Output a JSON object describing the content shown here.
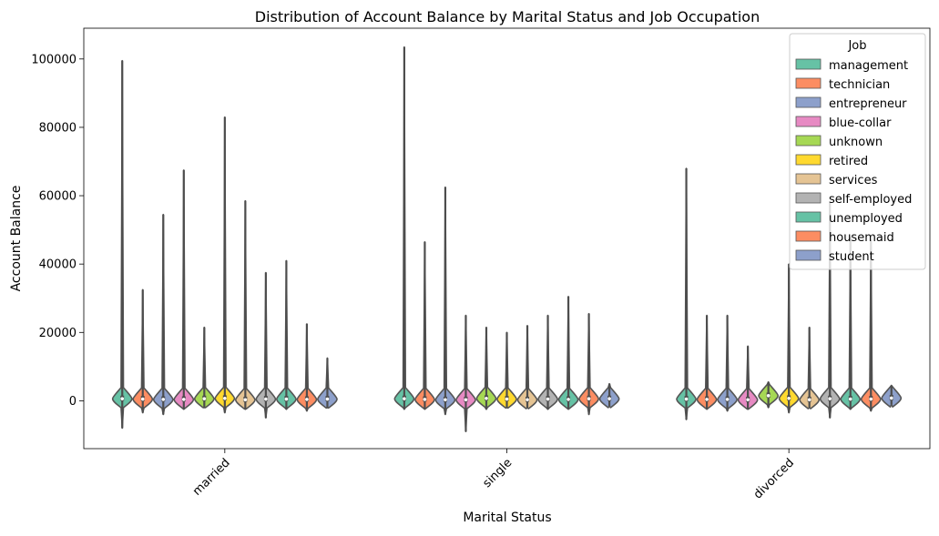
{
  "chart_data": {
    "type": "violin",
    "title": "Distribution of Account Balance by Marital Status and Job Occupation",
    "xlabel": "Marital Status",
    "ylabel": "Account Balance",
    "categories": [
      "married",
      "single",
      "divorced"
    ],
    "ylim": [
      -14000,
      109000
    ],
    "yticks": [
      0,
      20000,
      40000,
      60000,
      80000,
      100000
    ],
    "ytick_labels": [
      "0",
      "20000",
      "40000",
      "60000",
      "80000",
      "100000"
    ],
    "legend": {
      "title": "Job",
      "placement": "top-right"
    },
    "series": [
      {
        "name": "management",
        "color": "#66c2a5",
        "min": [
          -8000,
          -2500,
          -5500
        ],
        "max": [
          99500,
          103500,
          68000
        ],
        "median": [
          600,
          600,
          500
        ]
      },
      {
        "name": "technician",
        "color": "#fc8d62",
        "min": [
          -3500,
          -2500,
          -2500
        ],
        "max": [
          32500,
          46500,
          25000
        ],
        "median": [
          500,
          400,
          400
        ]
      },
      {
        "name": "entrepreneur",
        "color": "#8da0cb",
        "min": [
          -4000,
          -4000,
          -3000
        ],
        "max": [
          54500,
          62500,
          25000
        ],
        "median": [
          400,
          300,
          400
        ]
      },
      {
        "name": "blue-collar",
        "color": "#e78ac3",
        "min": [
          -2500,
          -9000,
          -2500
        ],
        "max": [
          67500,
          25000,
          16000
        ],
        "median": [
          400,
          300,
          300
        ]
      },
      {
        "name": "unknown",
        "color": "#a6d854",
        "min": [
          -2000,
          -2500,
          -2000
        ],
        "max": [
          21500,
          21500,
          5500
        ],
        "median": [
          600,
          700,
          1500
        ]
      },
      {
        "name": "retired",
        "color": "#ffd92f",
        "min": [
          -3500,
          -2000,
          -3500
        ],
        "max": [
          83000,
          20000,
          40000
        ],
        "median": [
          700,
          500,
          700
        ]
      },
      {
        "name": "services",
        "color": "#e5c494",
        "min": [
          -2500,
          -2000,
          -2000
        ],
        "max": [
          58500,
          22000,
          21500
        ],
        "median": [
          300,
          300,
          300
        ]
      },
      {
        "name": "self-employed",
        "color": "#b3b3b3",
        "min": [
          -5000,
          -2500,
          -5000
        ],
        "max": [
          37500,
          25000,
          58000
        ],
        "median": [
          500,
          500,
          600
        ]
      },
      {
        "name": "unemployed",
        "color": "#66c2a5",
        "min": [
          -2500,
          -2500,
          -2500
        ],
        "max": [
          41000,
          30500,
          48000
        ],
        "median": [
          500,
          400,
          500
        ]
      },
      {
        "name": "housemaid",
        "color": "#fc8d62",
        "min": [
          -3000,
          -4000,
          -3000
        ],
        "max": [
          22500,
          25500,
          47000
        ],
        "median": [
          400,
          600,
          500
        ]
      },
      {
        "name": "student",
        "color": "#8da0cb",
        "min": [
          -2000,
          -1500,
          -1000
        ],
        "max": [
          12500,
          5000,
          4500
        ],
        "median": [
          500,
          600,
          800
        ]
      }
    ]
  }
}
